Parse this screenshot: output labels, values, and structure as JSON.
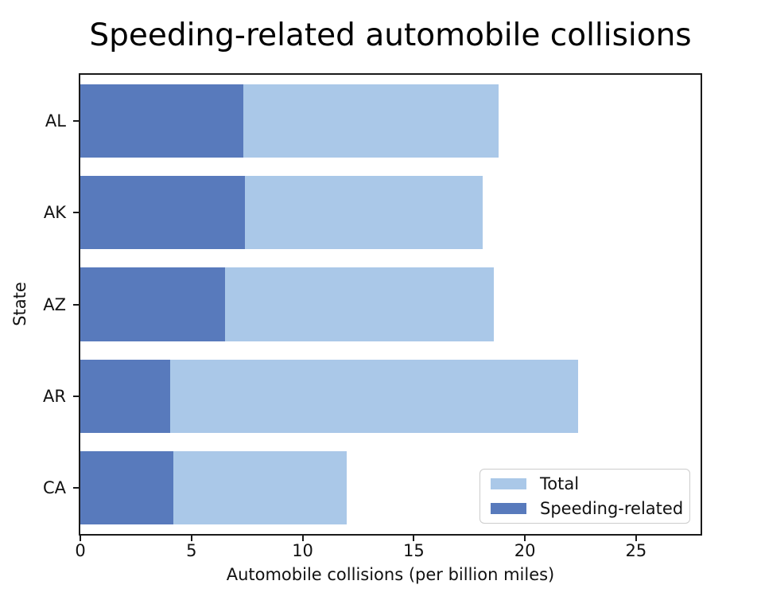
{
  "chart_data": {
    "type": "bar",
    "orientation": "horizontal",
    "title": "Speeding-related automobile collisions",
    "xlabel": "Automobile collisions (per billion miles)",
    "ylabel": "State",
    "categories": [
      "AL",
      "AK",
      "AZ",
      "AR",
      "CA"
    ],
    "series": [
      {
        "name": "Total",
        "color": "#aac8e8",
        "values": [
          18.8,
          18.1,
          18.6,
          22.4,
          12.0
        ]
      },
      {
        "name": "Speeding-related",
        "color": "#587abc",
        "values": [
          7.332,
          7.421,
          6.51,
          4.032,
          4.2
        ]
      }
    ],
    "xlim": [
      0,
      27.9
    ],
    "xticks": [
      0,
      5,
      10,
      15,
      20,
      25
    ],
    "grid": false,
    "bar_fraction": 0.8,
    "legend": {
      "position": "lower right",
      "entries": [
        "Total",
        "Speeding-related"
      ]
    },
    "axis_color": "#1a1a1a",
    "text_color": "#111111",
    "background": "#ffffff"
  }
}
